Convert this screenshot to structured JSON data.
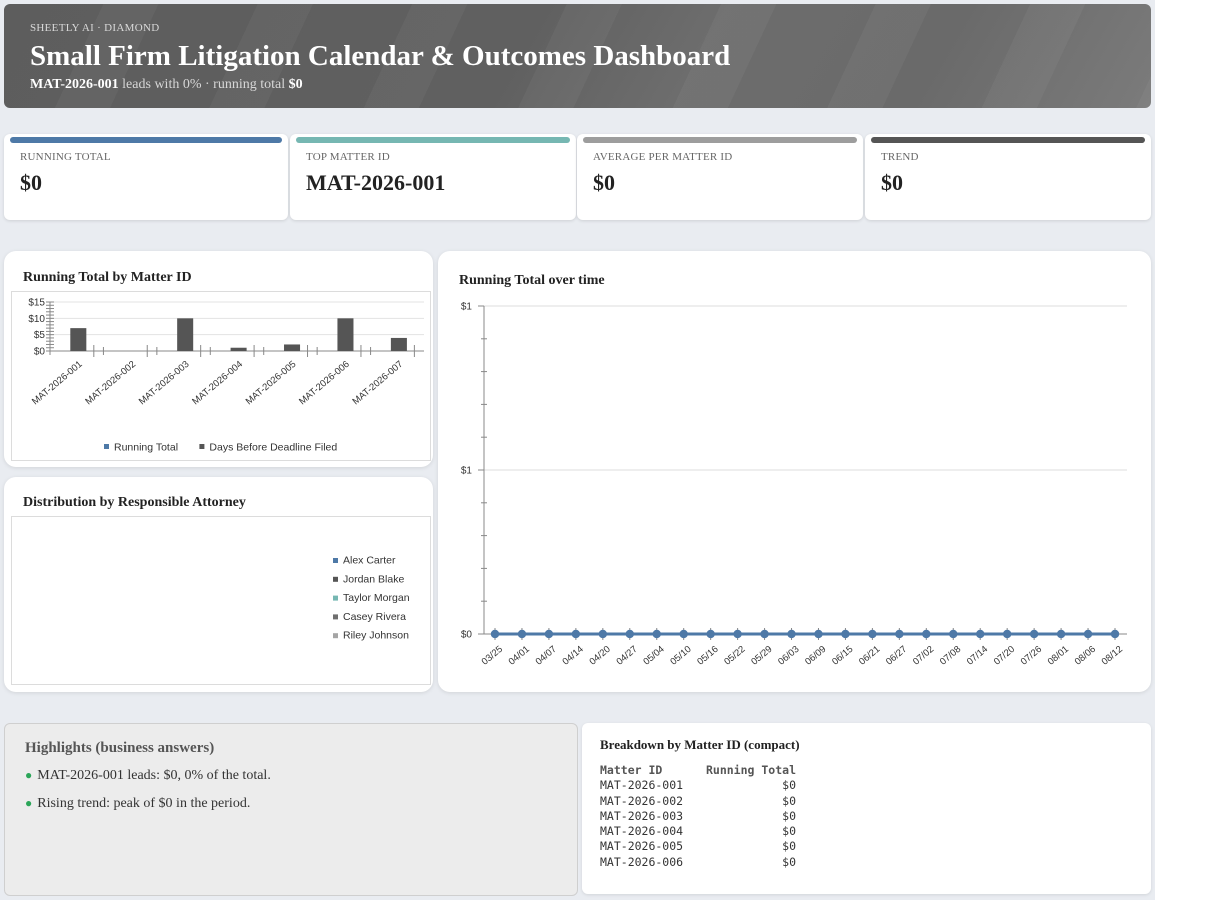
{
  "header": {
    "eyebrow": "SHEETLY AI · DIAMOND",
    "title": "Small Firm Litigation Calendar & Outcomes Dashboard",
    "subtitle_lead": "MAT-2026-001",
    "subtitle_mid": " leads with 0% · running total ",
    "subtitle_total": "$0"
  },
  "kpis": [
    {
      "label": "RUNNING TOTAL",
      "value": "$0",
      "color": "#4e79a7"
    },
    {
      "label": "TOP MATTER ID",
      "value": "MAT-2026-001",
      "color": "#76b7b2"
    },
    {
      "label": "AVERAGE PER MATTER ID",
      "value": "$0",
      "color": "#9d9d9d"
    },
    {
      "label": "TREND",
      "value": "$0",
      "color": "#555555"
    }
  ],
  "bar_card": {
    "title": "Running Total by Matter ID"
  },
  "pie_card": {
    "title": "Distribution by Responsible Attorney"
  },
  "line_card": {
    "title": "Running Total over time"
  },
  "highlights": {
    "title": "Highlights (business answers)",
    "items": [
      "MAT-2026-001 leads: $0, 0% of the total.",
      "Rising trend: peak of $0 in the period."
    ]
  },
  "breakdown": {
    "title": "Breakdown by Matter ID (compact)",
    "headers": [
      "Matter ID",
      "Running Total"
    ],
    "rows": [
      [
        "MAT-2026-001",
        "$0"
      ],
      [
        "MAT-2026-002",
        "$0"
      ],
      [
        "MAT-2026-003",
        "$0"
      ],
      [
        "MAT-2026-004",
        "$0"
      ],
      [
        "MAT-2026-005",
        "$0"
      ],
      [
        "MAT-2026-006",
        "$0"
      ]
    ]
  },
  "chart_data": [
    {
      "type": "bar",
      "title": "Running Total by Matter ID",
      "categories": [
        "MAT-2026-001",
        "MAT-2026-002",
        "MAT-2026-003",
        "MAT-2026-004",
        "MAT-2026-005",
        "MAT-2026-006",
        "MAT-2026-007"
      ],
      "series": [
        {
          "name": "Running Total",
          "color": "#4e79a7",
          "values": [
            0,
            0,
            0,
            0,
            0,
            0,
            0
          ]
        },
        {
          "name": "Days Before Deadline Filed",
          "color": "#555555",
          "values": [
            7,
            0,
            10,
            1,
            2,
            10,
            4
          ]
        }
      ],
      "yticks": [
        "$15",
        "$10",
        "$5",
        "$0"
      ],
      "ylim": [
        0,
        15
      ],
      "legend": "bottom"
    },
    {
      "type": "pie",
      "title": "Distribution by Responsible Attorney",
      "labels": [
        "Alex Carter",
        "Jordan Blake",
        "Taylor Morgan",
        "Casey Rivera",
        "Riley Johnson"
      ],
      "colors": [
        "#4e79a7",
        "#555555",
        "#76b7b2",
        "#6f6f6f",
        "#a5a5a5"
      ],
      "values": [
        0,
        0,
        0,
        0,
        0
      ],
      "legend": "right"
    },
    {
      "type": "line",
      "title": "Running Total over time",
      "x": [
        "03/25",
        "04/01",
        "04/07",
        "04/14",
        "04/20",
        "04/27",
        "05/04",
        "05/10",
        "05/16",
        "05/22",
        "05/29",
        "06/03",
        "06/09",
        "06/15",
        "06/21",
        "06/27",
        "07/02",
        "07/08",
        "07/14",
        "07/20",
        "07/26",
        "08/01",
        "08/06",
        "08/12"
      ],
      "series": [
        {
          "color": "#4e79a7",
          "values": [
            0,
            0,
            0,
            0,
            0,
            0,
            0,
            0,
            0,
            0,
            0,
            0,
            0,
            0,
            0,
            0,
            0,
            0,
            0,
            0,
            0,
            0,
            0,
            0
          ]
        }
      ],
      "yticks": [
        "$1",
        "$1",
        "$0"
      ],
      "ylim": [
        0,
        1
      ],
      "grid": true
    }
  ]
}
